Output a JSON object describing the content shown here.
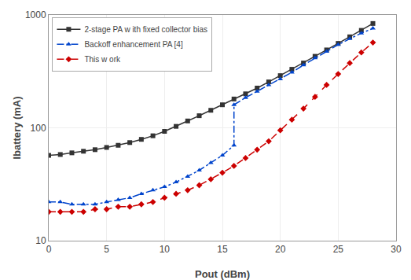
{
  "chart_data": {
    "type": "line",
    "xlabel": "Pout (dBm)",
    "ylabel": "Ibattery (mA)",
    "log": "y",
    "xlim": [
      0,
      30
    ],
    "ylim": [
      10,
      1000
    ],
    "xticks": [
      0,
      5,
      10,
      15,
      20,
      25,
      30
    ],
    "yticks": [
      10,
      100,
      1000
    ],
    "grid": true,
    "legend": "upper left",
    "series": [
      {
        "name": "2-stage PA w ith fixed collector bias",
        "color": "#333333",
        "marker": "square",
        "line_style": "solid",
        "x": [
          0,
          1,
          2,
          3,
          4,
          5,
          6,
          7,
          8,
          9,
          10,
          11,
          12,
          13,
          14,
          15,
          16,
          17,
          18,
          19,
          20,
          21,
          22,
          23,
          24,
          25,
          26,
          27,
          28
        ],
        "values": [
          57,
          58,
          60,
          62,
          64,
          67,
          70,
          74,
          79,
          85,
          93,
          103,
          115,
          128,
          143,
          160,
          180,
          200,
          225,
          255,
          290,
          330,
          375,
          430,
          490,
          560,
          640,
          730,
          840
        ]
      },
      {
        "name": "Backoff enhancement PA [4]",
        "color": "#0044cc",
        "marker": "triangle-up",
        "line_style": "dashdot",
        "x": [
          0,
          1,
          2,
          3,
          4,
          5,
          6,
          7,
          8,
          9,
          10,
          11,
          12,
          13,
          14,
          15,
          16,
          16,
          17,
          18,
          19,
          20,
          21,
          22,
          23,
          24,
          25,
          26,
          27,
          28
        ],
        "values": [
          22,
          22,
          21,
          21,
          21,
          22,
          23,
          24,
          26,
          28,
          30,
          33,
          37,
          42,
          49,
          57,
          70,
          160,
          185,
          210,
          240,
          270,
          310,
          360,
          415,
          475,
          545,
          615,
          690,
          760
        ]
      },
      {
        "name": "This w ork",
        "color": "#cc0000",
        "marker": "diamond",
        "line_style": "dash",
        "x": [
          0,
          1,
          2,
          3,
          4,
          5,
          6,
          7,
          8,
          9,
          10,
          11,
          12,
          13,
          14,
          15,
          16,
          17,
          18,
          19,
          20,
          21,
          22,
          23,
          24,
          25,
          26,
          27,
          28
        ],
        "values": [
          18,
          18,
          18,
          18,
          19,
          19,
          20,
          20,
          21,
          22,
          24,
          26,
          28,
          31,
          35,
          40,
          46,
          54,
          64,
          76,
          95,
          118,
          148,
          188,
          240,
          300,
          375,
          465,
          570
        ]
      }
    ]
  }
}
